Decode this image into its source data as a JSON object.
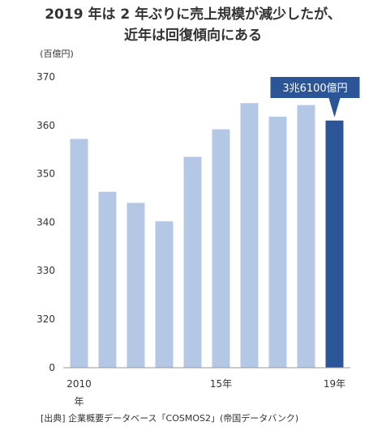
{
  "chart_data": {
    "type": "bar",
    "title": "2019 年は 2 年ぶりに売上規模が減少したが、",
    "subtitle": "近年は回復傾向にある",
    "unit_label": "(百億円)",
    "x": [
      2010,
      2011,
      2012,
      2013,
      2014,
      2015,
      2016,
      2017,
      2018,
      2019
    ],
    "values": [
      357.2,
      346.3,
      344.0,
      340.2,
      353.5,
      359.2,
      364.6,
      361.8,
      364.2,
      361.0
    ],
    "x_tick_labels": [
      {
        "x": 2010,
        "label": "2010\n年"
      },
      {
        "x": 2015,
        "label": "15年"
      },
      {
        "x": 2019,
        "label": "19年"
      }
    ],
    "ylim": [
      300,
      370
    ],
    "y_break": true,
    "y_tick_labels": [
      "0",
      "320",
      "330",
      "340",
      "350",
      "360",
      "370"
    ],
    "colors": {
      "bar": "#b4c8e6",
      "highlight": "#2c5597",
      "callout": "#2c5597"
    },
    "highlight_x": 2019,
    "annotation": "3兆6100億円",
    "grid": false,
    "source": "[出典] 企業概要データベース「COSMOS2」(帝国データバンク)"
  }
}
